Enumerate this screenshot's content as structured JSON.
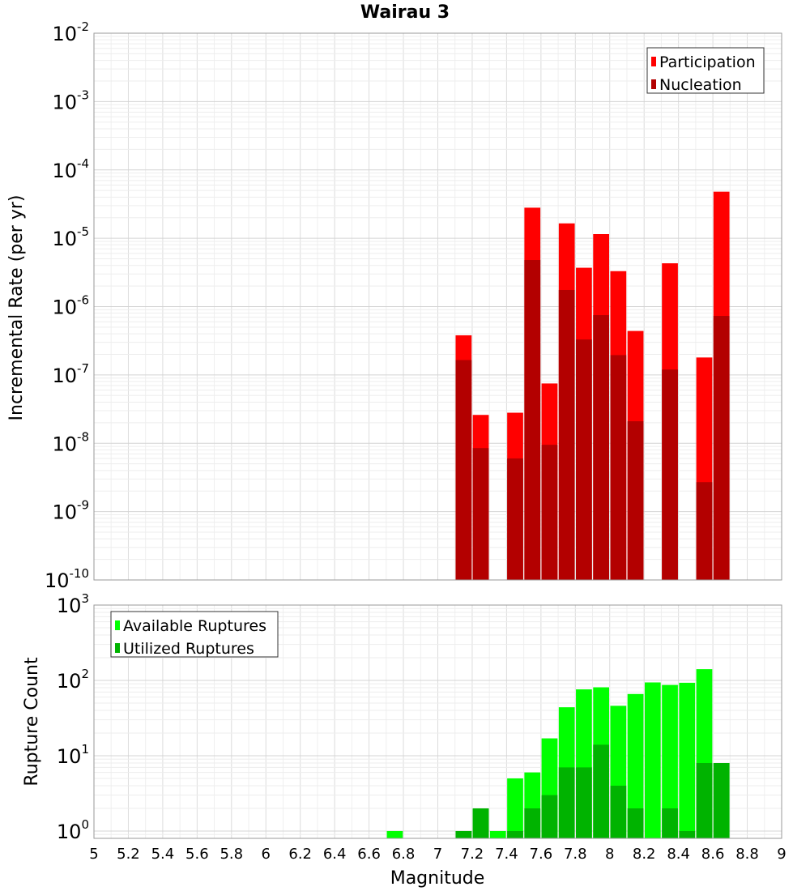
{
  "chart_data": [
    {
      "type": "bar",
      "title": "Wairau 3",
      "xlabel": "",
      "ylabel": "Incremental Rate (per yr)",
      "yscale": "log",
      "ylim": [
        1e-10,
        0.01
      ],
      "xlim": [
        5,
        9
      ],
      "grid": true,
      "legend_position": "top-right",
      "ytick_labels": [
        {
          "base": "10",
          "exp": "-10"
        },
        {
          "base": "10",
          "exp": "-9"
        },
        {
          "base": "10",
          "exp": "-8"
        },
        {
          "base": "10",
          "exp": "-7"
        },
        {
          "base": "10",
          "exp": "-6"
        },
        {
          "base": "10",
          "exp": "-5"
        },
        {
          "base": "10",
          "exp": "-4"
        },
        {
          "base": "10",
          "exp": "-3"
        },
        {
          "base": "10",
          "exp": "-2"
        }
      ],
      "series": [
        {
          "name": "Participation",
          "color": "#ff0000",
          "points": [
            {
              "x": 7.15,
              "y": 3.8e-07
            },
            {
              "x": 7.25,
              "y": 2.6e-08
            },
            {
              "x": 7.45,
              "y": 2.8e-08
            },
            {
              "x": 7.55,
              "y": 2.8e-05
            },
            {
              "x": 7.65,
              "y": 7.5e-08
            },
            {
              "x": 7.75,
              "y": 1.65e-05
            },
            {
              "x": 7.85,
              "y": 3.7e-06
            },
            {
              "x": 7.95,
              "y": 1.15e-05
            },
            {
              "x": 8.05,
              "y": 3.3e-06
            },
            {
              "x": 8.15,
              "y": 4.4e-07
            },
            {
              "x": 8.35,
              "y": 4.3e-06
            },
            {
              "x": 8.55,
              "y": 1.8e-07
            },
            {
              "x": 8.65,
              "y": 4.8e-05
            }
          ]
        },
        {
          "name": "Nucleation",
          "color": "#b30000",
          "points": [
            {
              "x": 7.15,
              "y": 1.65e-07
            },
            {
              "x": 7.25,
              "y": 8.5e-09
            },
            {
              "x": 7.45,
              "y": 6e-09
            },
            {
              "x": 7.55,
              "y": 4.8e-06
            },
            {
              "x": 7.65,
              "y": 9.5e-09
            },
            {
              "x": 7.75,
              "y": 1.75e-06
            },
            {
              "x": 7.85,
              "y": 3.3e-07
            },
            {
              "x": 7.95,
              "y": 7.5e-07
            },
            {
              "x": 8.05,
              "y": 1.95e-07
            },
            {
              "x": 8.15,
              "y": 2.1e-08
            },
            {
              "x": 8.35,
              "y": 1.2e-07
            },
            {
              "x": 8.55,
              "y": 2.7e-09
            },
            {
              "x": 8.65,
              "y": 7.3e-07
            }
          ]
        }
      ]
    },
    {
      "type": "bar",
      "title": "",
      "xlabel": "Magnitude",
      "ylabel": "Rupture Count",
      "yscale": "log",
      "ylim": [
        0.8,
        1000
      ],
      "xlim": [
        5,
        9
      ],
      "grid": true,
      "legend_position": "top-left",
      "xtick_labels": [
        "5",
        "5.2",
        "5.4",
        "5.6",
        "5.8",
        "6",
        "6.2",
        "6.4",
        "6.6",
        "6.8",
        "7",
        "7.2",
        "7.4",
        "7.6",
        "7.8",
        "8",
        "8.2",
        "8.4",
        "8.6",
        "8.8",
        "9"
      ],
      "ytick_labels": [
        {
          "base": "10",
          "exp": "0"
        },
        {
          "base": "10",
          "exp": "1"
        },
        {
          "base": "10",
          "exp": "2"
        },
        {
          "base": "10",
          "exp": "3"
        }
      ],
      "series": [
        {
          "name": "Available Ruptures",
          "color": "#00ff00",
          "points": [
            {
              "x": 6.75,
              "y": 1
            },
            {
              "x": 7.15,
              "y": 1
            },
            {
              "x": 7.25,
              "y": 2
            },
            {
              "x": 7.35,
              "y": 1
            },
            {
              "x": 7.45,
              "y": 5
            },
            {
              "x": 7.55,
              "y": 6
            },
            {
              "x": 7.65,
              "y": 17
            },
            {
              "x": 7.75,
              "y": 44
            },
            {
              "x": 7.85,
              "y": 76
            },
            {
              "x": 7.95,
              "y": 81
            },
            {
              "x": 8.05,
              "y": 46
            },
            {
              "x": 8.15,
              "y": 66
            },
            {
              "x": 8.25,
              "y": 94
            },
            {
              "x": 8.35,
              "y": 87
            },
            {
              "x": 8.45,
              "y": 93
            },
            {
              "x": 8.55,
              "y": 141
            },
            {
              "x": 8.65,
              "y": 8
            }
          ]
        },
        {
          "name": "Utilized Ruptures",
          "color": "#00b300",
          "points": [
            {
              "x": 7.15,
              "y": 1
            },
            {
              "x": 7.25,
              "y": 2
            },
            {
              "x": 7.45,
              "y": 1
            },
            {
              "x": 7.55,
              "y": 2
            },
            {
              "x": 7.65,
              "y": 3
            },
            {
              "x": 7.75,
              "y": 7
            },
            {
              "x": 7.85,
              "y": 7
            },
            {
              "x": 7.95,
              "y": 14
            },
            {
              "x": 8.05,
              "y": 4
            },
            {
              "x": 8.15,
              "y": 2
            },
            {
              "x": 8.35,
              "y": 2
            },
            {
              "x": 8.45,
              "y": 1
            },
            {
              "x": 8.55,
              "y": 8
            },
            {
              "x": 8.65,
              "y": 8
            }
          ]
        }
      ]
    }
  ]
}
